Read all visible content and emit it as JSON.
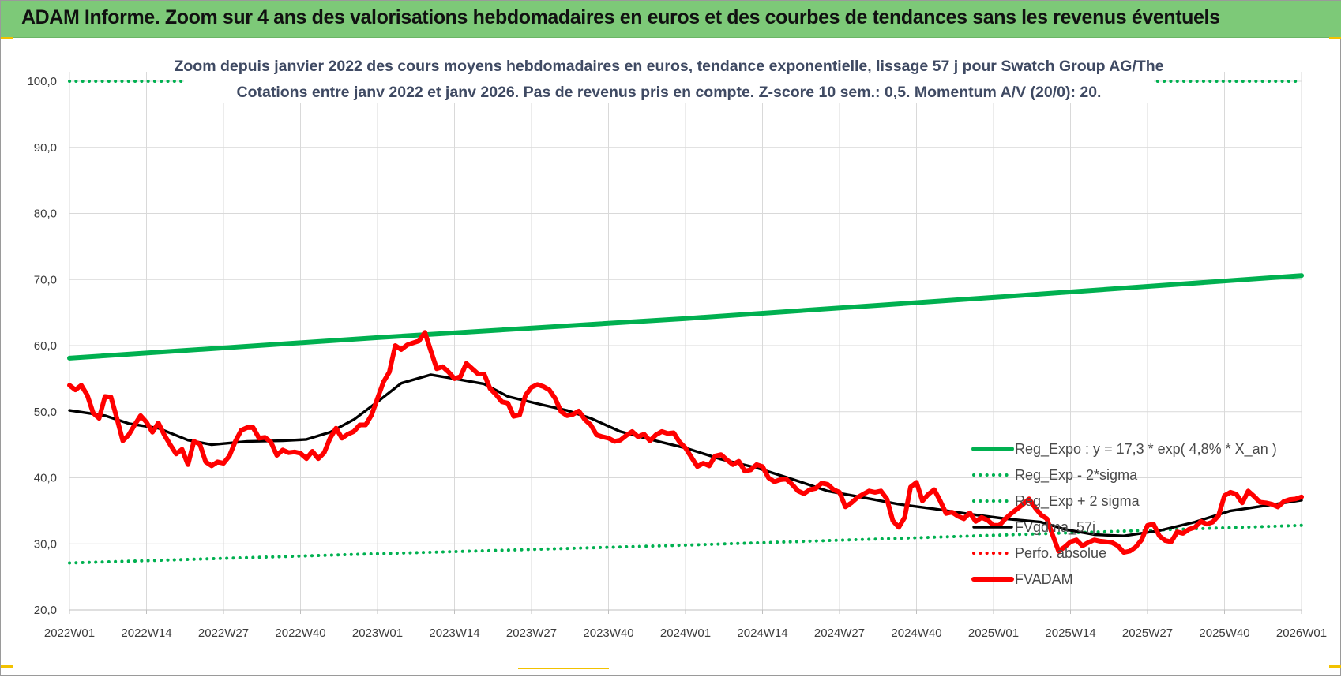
{
  "header": {
    "title": "ADAM Informe. Zoom sur 4 ans des valorisations hebdomadaires en euros et des courbes de tendances sans les revenus éventuels"
  },
  "colors": {
    "banner": "#7dc978",
    "trend": "#00b050",
    "price": "#ff0000",
    "smooth": "#000000",
    "grid": "#d9d9d9"
  },
  "chart_data": {
    "type": "line",
    "title_lines": [
      "Zoom depuis janvier 2022 des cours moyens hebdomadaires en euros, tendance exponentielle, lissage 57 j pour Swatch Group AG/The",
      "Cotations entre janv 2022 et janv 2026. Pas de revenus pris en compte. Z-score 10 sem.: 0,5. Momentum A/V (20/0): 20."
    ],
    "x_tick_labels": [
      "2022W01",
      "2022W14",
      "2022W27",
      "2022W40",
      "2023W01",
      "2023W14",
      "2023W27",
      "2023W40",
      "2024W01",
      "2024W14",
      "2024W27",
      "2024W40",
      "2025W01",
      "2025W14",
      "2025W27",
      "2025W40",
      "2026W01"
    ],
    "y_tick_labels": [
      "20,0",
      "30,0",
      "40,0",
      "50,0",
      "60,0",
      "70,0",
      "80,0",
      "90,0",
      "100,0"
    ],
    "ylim": [
      20,
      100
    ],
    "xlim": [
      0,
      208
    ],
    "grid": true,
    "legend_position": "right",
    "series": [
      {
        "name": "Reg_Expo : y = 17,3 * exp( 4,8% *  X_an )",
        "style": "solid-thick",
        "color": "#00b050",
        "points": [
          [
            0,
            58.1
          ],
          [
            52,
            61.2
          ],
          [
            104,
            64.1
          ],
          [
            156,
            67.3
          ],
          [
            208,
            70.6
          ]
        ]
      },
      {
        "name": "Reg_Exp - 2*sigma",
        "style": "dotted",
        "color": "#00b050",
        "points": [
          [
            0,
            27.1
          ],
          [
            52,
            28.5
          ],
          [
            104,
            29.8
          ],
          [
            156,
            31.3
          ],
          [
            208,
            32.8
          ]
        ]
      },
      {
        "name": "Reg_Exp + 2 sigma",
        "style": "dotted",
        "color": "#00b050",
        "points": [
          [
            0,
            100
          ],
          [
            208,
            100
          ]
        ]
      },
      {
        "name": "FVgdma_57j",
        "style": "solid",
        "color": "#000000",
        "points": [
          [
            0,
            50.2
          ],
          [
            6,
            49.4
          ],
          [
            10,
            48.2
          ],
          [
            15,
            47.5
          ],
          [
            20,
            45.7
          ],
          [
            24,
            45.0
          ],
          [
            30,
            45.5
          ],
          [
            36,
            45.6
          ],
          [
            40,
            45.8
          ],
          [
            44,
            46.9
          ],
          [
            48,
            48.8
          ],
          [
            52,
            51.5
          ],
          [
            56,
            54.3
          ],
          [
            61,
            55.6
          ],
          [
            65,
            55.0
          ],
          [
            70,
            54.2
          ],
          [
            74,
            52.3
          ],
          [
            80,
            51.0
          ],
          [
            84,
            50.2
          ],
          [
            88,
            49.0
          ],
          [
            93,
            47.0
          ],
          [
            98,
            45.8
          ],
          [
            104,
            44.5
          ],
          [
            110,
            42.8
          ],
          [
            116,
            41.5
          ],
          [
            122,
            39.8
          ],
          [
            128,
            38.0
          ],
          [
            134,
            37.0
          ],
          [
            140,
            36.0
          ],
          [
            146,
            35.3
          ],
          [
            152,
            34.5
          ],
          [
            158,
            33.8
          ],
          [
            164,
            33.3
          ],
          [
            168,
            32.2
          ],
          [
            173,
            31.4
          ],
          [
            178,
            31.2
          ],
          [
            184,
            32.0
          ],
          [
            190,
            33.3
          ],
          [
            196,
            35.0
          ],
          [
            202,
            35.8
          ],
          [
            208,
            36.6
          ]
        ]
      },
      {
        "name": "Perfo. absolue",
        "style": "dotted",
        "color": "#ff0000",
        "points": []
      },
      {
        "name": "FVADAM",
        "style": "solid-thick",
        "color": "#ff0000",
        "points": [
          [
            0,
            54.0
          ],
          [
            1,
            53.3
          ],
          [
            2,
            54.0
          ],
          [
            3,
            52.5
          ],
          [
            4,
            49.8
          ],
          [
            5,
            49.0
          ],
          [
            6,
            52.3
          ],
          [
            7,
            52.2
          ],
          [
            8,
            49.0
          ],
          [
            9,
            45.6
          ],
          [
            10,
            46.5
          ],
          [
            11,
            48.0
          ],
          [
            12,
            49.4
          ],
          [
            13,
            48.4
          ],
          [
            14,
            46.9
          ],
          [
            15,
            48.3
          ],
          [
            16,
            46.5
          ],
          [
            17,
            45.0
          ],
          [
            18,
            43.6
          ],
          [
            19,
            44.3
          ],
          [
            20,
            42.0
          ],
          [
            21,
            45.5
          ],
          [
            22,
            45.1
          ],
          [
            23,
            42.4
          ],
          [
            24,
            41.8
          ],
          [
            25,
            42.4
          ],
          [
            26,
            42.2
          ],
          [
            27,
            43.3
          ],
          [
            28,
            45.5
          ],
          [
            29,
            47.2
          ],
          [
            30,
            47.6
          ],
          [
            31,
            47.6
          ],
          [
            32,
            46.0
          ],
          [
            33,
            46.1
          ],
          [
            34,
            45.4
          ],
          [
            35,
            43.4
          ],
          [
            36,
            44.2
          ],
          [
            37,
            43.8
          ],
          [
            38,
            43.9
          ],
          [
            39,
            43.7
          ],
          [
            40,
            42.9
          ],
          [
            41,
            44.0
          ],
          [
            42,
            42.9
          ],
          [
            43,
            43.8
          ],
          [
            44,
            46.0
          ],
          [
            45,
            47.5
          ],
          [
            46,
            46.0
          ],
          [
            47,
            46.6
          ],
          [
            48,
            47.0
          ],
          [
            49,
            48.0
          ],
          [
            50,
            48.0
          ],
          [
            51,
            49.5
          ],
          [
            52,
            52.0
          ],
          [
            53,
            54.5
          ],
          [
            54,
            56.0
          ],
          [
            55,
            60.0
          ],
          [
            56,
            59.4
          ],
          [
            57,
            60.1
          ],
          [
            58,
            60.4
          ],
          [
            59,
            60.7
          ],
          [
            60,
            62.0
          ],
          [
            61,
            59.2
          ],
          [
            62,
            56.5
          ],
          [
            63,
            56.8
          ],
          [
            64,
            56.0
          ],
          [
            65,
            55.0
          ],
          [
            66,
            55.3
          ],
          [
            67,
            57.3
          ],
          [
            68,
            56.5
          ],
          [
            69,
            55.7
          ],
          [
            70,
            55.7
          ],
          [
            71,
            53.5
          ],
          [
            72,
            52.6
          ],
          [
            73,
            51.5
          ],
          [
            74,
            51.3
          ],
          [
            75,
            49.3
          ],
          [
            76,
            49.5
          ],
          [
            77,
            52.5
          ],
          [
            78,
            53.7
          ],
          [
            79,
            54.1
          ],
          [
            80,
            53.8
          ],
          [
            81,
            53.3
          ],
          [
            82,
            52.0
          ],
          [
            83,
            50.0
          ],
          [
            84,
            49.4
          ],
          [
            85,
            49.6
          ],
          [
            86,
            50.1
          ],
          [
            87,
            48.8
          ],
          [
            88,
            48.0
          ],
          [
            89,
            46.5
          ],
          [
            90,
            46.2
          ],
          [
            91,
            46.0
          ],
          [
            92,
            45.5
          ],
          [
            93,
            45.7
          ],
          [
            94,
            46.4
          ],
          [
            95,
            47.0
          ],
          [
            96,
            46.2
          ],
          [
            97,
            46.6
          ],
          [
            98,
            45.6
          ],
          [
            99,
            46.5
          ],
          [
            100,
            47.0
          ],
          [
            101,
            46.7
          ],
          [
            102,
            46.8
          ],
          [
            103,
            45.4
          ],
          [
            104,
            44.5
          ],
          [
            105,
            43.1
          ],
          [
            106,
            41.7
          ],
          [
            107,
            42.2
          ],
          [
            108,
            41.8
          ],
          [
            109,
            43.3
          ],
          [
            110,
            43.5
          ],
          [
            111,
            42.7
          ],
          [
            112,
            42.0
          ],
          [
            113,
            42.5
          ],
          [
            114,
            41.0
          ],
          [
            115,
            41.2
          ],
          [
            116,
            42.0
          ],
          [
            117,
            41.7
          ],
          [
            118,
            40.0
          ],
          [
            119,
            39.4
          ],
          [
            120,
            39.7
          ],
          [
            121,
            39.8
          ],
          [
            122,
            39.0
          ],
          [
            123,
            38.0
          ],
          [
            124,
            37.6
          ],
          [
            125,
            38.2
          ],
          [
            126,
            38.4
          ],
          [
            127,
            39.2
          ],
          [
            128,
            39.0
          ],
          [
            129,
            38.2
          ],
          [
            130,
            37.8
          ],
          [
            131,
            35.6
          ],
          [
            132,
            36.2
          ],
          [
            133,
            37.0
          ],
          [
            134,
            37.5
          ],
          [
            135,
            38.0
          ],
          [
            136,
            37.8
          ],
          [
            137,
            38.0
          ],
          [
            138,
            36.8
          ],
          [
            139,
            33.5
          ],
          [
            140,
            32.5
          ],
          [
            141,
            34.0
          ],
          [
            142,
            38.6
          ],
          [
            143,
            39.3
          ],
          [
            144,
            36.5
          ],
          [
            145,
            37.5
          ],
          [
            146,
            38.2
          ],
          [
            147,
            36.5
          ],
          [
            148,
            34.6
          ],
          [
            149,
            34.8
          ],
          [
            150,
            34.2
          ],
          [
            151,
            33.8
          ],
          [
            152,
            34.7
          ],
          [
            153,
            33.4
          ],
          [
            154,
            34.0
          ],
          [
            155,
            33.6
          ],
          [
            156,
            32.8
          ],
          [
            157,
            32.8
          ],
          [
            158,
            33.8
          ],
          [
            159,
            34.6
          ],
          [
            160,
            35.3
          ],
          [
            161,
            36.0
          ],
          [
            162,
            36.8
          ],
          [
            163,
            35.5
          ],
          [
            164,
            34.4
          ],
          [
            165,
            33.8
          ],
          [
            166,
            31.3
          ],
          [
            167,
            28.9
          ],
          [
            168,
            29.5
          ],
          [
            169,
            30.3
          ],
          [
            170,
            30.6
          ],
          [
            171,
            29.7
          ],
          [
            172,
            30.2
          ],
          [
            173,
            30.6
          ],
          [
            174,
            30.4
          ],
          [
            175,
            30.3
          ],
          [
            176,
            30.2
          ],
          [
            177,
            29.7
          ],
          [
            178,
            28.7
          ],
          [
            179,
            28.9
          ],
          [
            180,
            29.5
          ],
          [
            181,
            30.6
          ],
          [
            182,
            32.8
          ],
          [
            183,
            33.0
          ],
          [
            184,
            31.2
          ],
          [
            185,
            30.5
          ],
          [
            186,
            30.3
          ],
          [
            187,
            31.8
          ],
          [
            188,
            31.6
          ],
          [
            189,
            32.2
          ],
          [
            190,
            32.5
          ],
          [
            191,
            33.4
          ],
          [
            192,
            33.0
          ],
          [
            193,
            33.3
          ],
          [
            194,
            34.3
          ],
          [
            195,
            37.3
          ],
          [
            196,
            37.8
          ],
          [
            197,
            37.5
          ],
          [
            198,
            36.2
          ],
          [
            199,
            38.0
          ],
          [
            200,
            37.2
          ],
          [
            201,
            36.3
          ],
          [
            202,
            36.2
          ],
          [
            203,
            36.0
          ],
          [
            204,
            35.6
          ],
          [
            205,
            36.4
          ],
          [
            206,
            36.7
          ],
          [
            207,
            36.8
          ],
          [
            208,
            37.1
          ]
        ]
      }
    ]
  }
}
